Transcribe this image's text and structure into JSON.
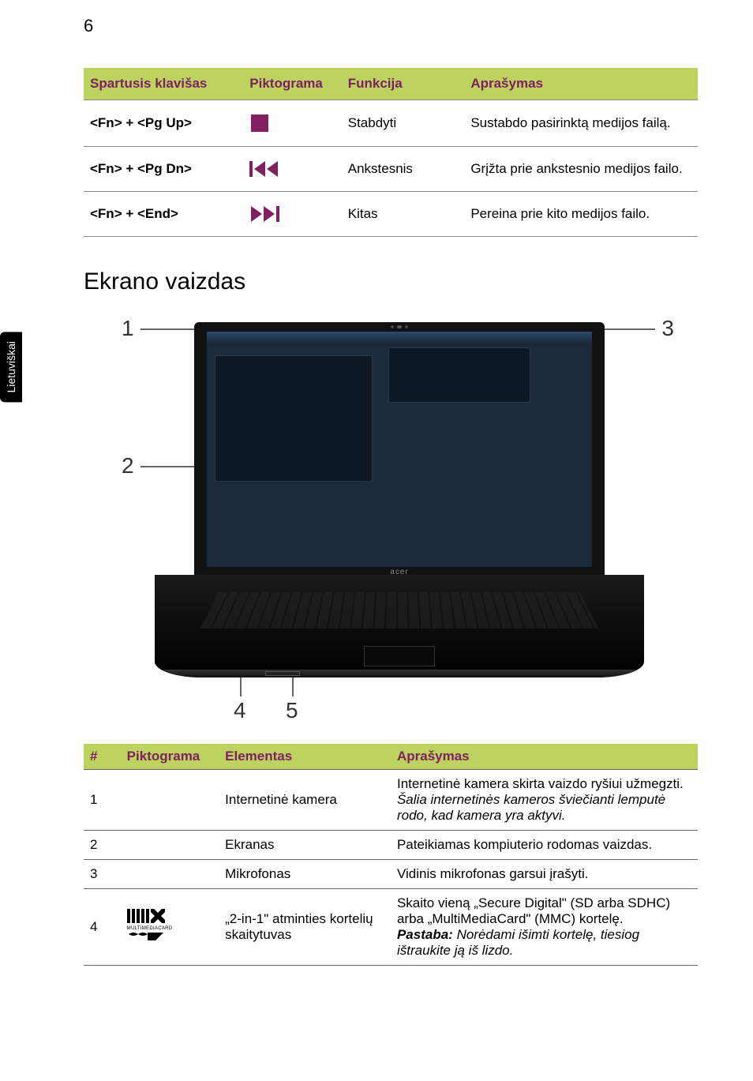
{
  "page_number": "6",
  "side_tab": "Lietuviškai",
  "hotkeys_header_bg": "#bcd35f",
  "hotkeys_header_text": "#802060",
  "hotkeys": {
    "headers": {
      "key": "Spartusis klavišas",
      "icon": "Piktograma",
      "func": "Funkcija",
      "desc": "Aprašymas"
    },
    "rows": [
      {
        "key": "<Fn> + <Pg Up>",
        "icon": "stop",
        "icon_color": "#802060",
        "func": "Stabdyti",
        "desc": "Sustabdo pasirinktą medijos failą."
      },
      {
        "key": "<Fn> + <Pg Dn>",
        "icon": "prev",
        "icon_color": "#802060",
        "func": "Ankstesnis",
        "desc": "Grįžta prie ankstesnio medijos failo."
      },
      {
        "key": "<Fn> + <End>",
        "icon": "next",
        "icon_color": "#802060",
        "func": "Kitas",
        "desc": "Pereina prie kito medijos failo."
      }
    ]
  },
  "section_title": "Ekrano vaizdas",
  "illustration": {
    "callouts": [
      "1",
      "2",
      "3",
      "4",
      "5"
    ],
    "brand": "acer"
  },
  "elements_header_bg": "#bcd35f",
  "elements_header_text": "#802060",
  "elements": {
    "headers": {
      "num": "#",
      "icon": "Piktograma",
      "elem": "Elementas",
      "desc": "Aprašymas"
    },
    "rows": [
      {
        "num": "1",
        "elem": "Internetinė kamera",
        "desc_plain": "Internetinė kamera skirta vaizdo ryšiui užmegzti.",
        "desc_italic": "Šalia internetinės kameros šviečianti lemputė rodo, kad kamera yra aktyvi."
      },
      {
        "num": "2",
        "elem": "Ekranas",
        "desc_plain": "Pateikiamas kompiuterio rodomas vaizdas."
      },
      {
        "num": "3",
        "elem": "Mikrofonas",
        "desc_plain": "Vidinis mikrofonas garsui įrašyti."
      },
      {
        "num": "4",
        "icon": "mmc-sd",
        "elem": "„2-in-1\" atminties kortelių skaitytuvas",
        "desc_plain": "Skaito vieną „Secure Digital\" (SD arba SDHC) arba „MultiMediaCard\" (MMC) kortelę.",
        "desc_bold_label": "Pastaba:",
        "desc_italic": " Norėdami išimti kortelę, tiesiog ištraukite ją iš lizdo."
      }
    ]
  }
}
